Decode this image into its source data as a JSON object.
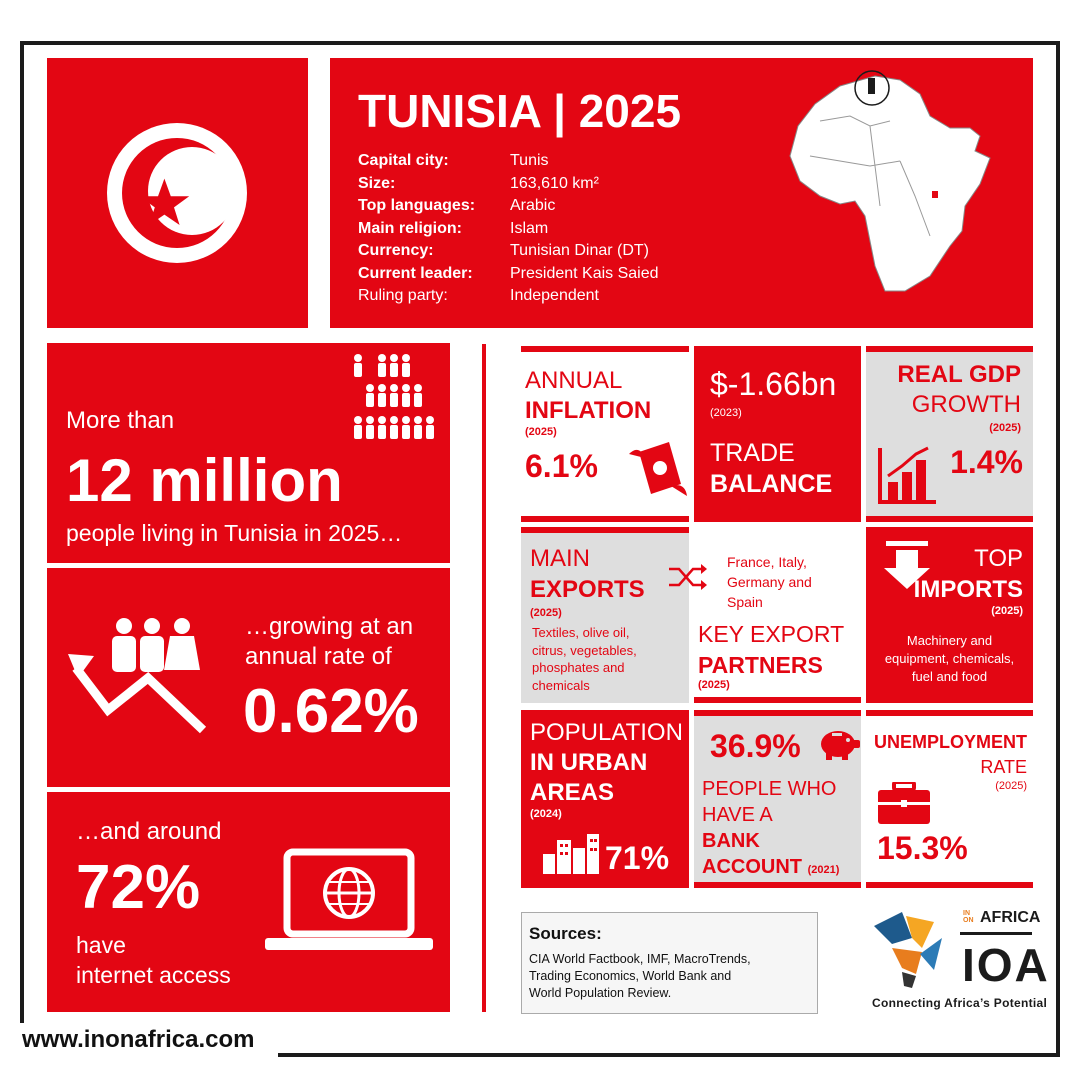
{
  "website": "www.inonafrica.com",
  "colors": {
    "accent": "#e30613",
    "panel_grey": "#dedede",
    "frame": "#1b1b1b"
  },
  "header": {
    "title": "TUNISIA | 2025",
    "facts": [
      {
        "label": "Capital city:",
        "value": "Tunis"
      },
      {
        "label": "Size:",
        "value": "163,610 km²"
      },
      {
        "label": "Top languages:",
        "value": "Arabic"
      },
      {
        "label": "Main religion:",
        "value": "Islam"
      },
      {
        "label": "Currency:",
        "value": "Tunisian Dinar (DT)"
      },
      {
        "label": "Current leader:",
        "value": "President Kais Saied"
      },
      {
        "label": "Ruling party:",
        "value": "Independent"
      }
    ]
  },
  "population": {
    "intro": "More than",
    "value": "12 million",
    "caption": "people living in Tunisia in 2025…",
    "growth_intro_1": "…growing at an",
    "growth_intro_2": "annual rate of",
    "growth_value": "0.62%",
    "internet_intro": "…and around",
    "internet_value": "72%",
    "internet_caption_1": "have",
    "internet_caption_2": "internet access"
  },
  "inflation": {
    "line1": "ANNUAL",
    "line2": "INFLATION",
    "year": "(2025)",
    "value": "6.1%"
  },
  "trade": {
    "value": "$-1.66bn",
    "year": "(2023)",
    "line1": "TRADE",
    "line2": "BALANCE"
  },
  "gdp": {
    "line1": "REAL GDP",
    "line2": "GROWTH",
    "year": "(2025)",
    "value": "1.4%"
  },
  "exports": {
    "line1": "MAIN",
    "line2": "EXPORTS",
    "year": "(2025)",
    "items": [
      "Textiles, olive oil,",
      "citrus, vegetables,",
      "phosphates and",
      "chemicals"
    ]
  },
  "partners": {
    "countries": [
      "France, Italy,",
      "Germany and",
      "Spain"
    ],
    "line1": "KEY EXPORT",
    "line2": "PARTNERS",
    "year": "(2025)"
  },
  "imports": {
    "line1": "TOP",
    "line2": "IMPORTS",
    "year": "(2025)",
    "items": [
      "Machinery and",
      "equipment, chemicals,",
      "fuel and food"
    ]
  },
  "urban": {
    "line1": "POPULATION",
    "line2": "IN URBAN",
    "line3": "AREAS",
    "year": "(2024)",
    "value": "71%"
  },
  "bank": {
    "value": "36.9%",
    "line1": "PEOPLE WHO",
    "line2": "HAVE A",
    "line3": "BANK",
    "line4": "ACCOUNT",
    "year": "(2021)"
  },
  "unemployment": {
    "line1": "UNEMPLOYMENT",
    "line2": "RATE",
    "year": "(2025)",
    "value": "15.3%"
  },
  "sources": {
    "heading": "Sources:",
    "lines": [
      "CIA World Factbook, IMF, MacroTrends,",
      "Trading Economics, World Bank and",
      "World Population Review."
    ]
  },
  "logo": {
    "in_on": "IN ON",
    "africa": "AFRICA",
    "mark": "IOA",
    "tagline": "Connecting Africa’s Potential"
  }
}
